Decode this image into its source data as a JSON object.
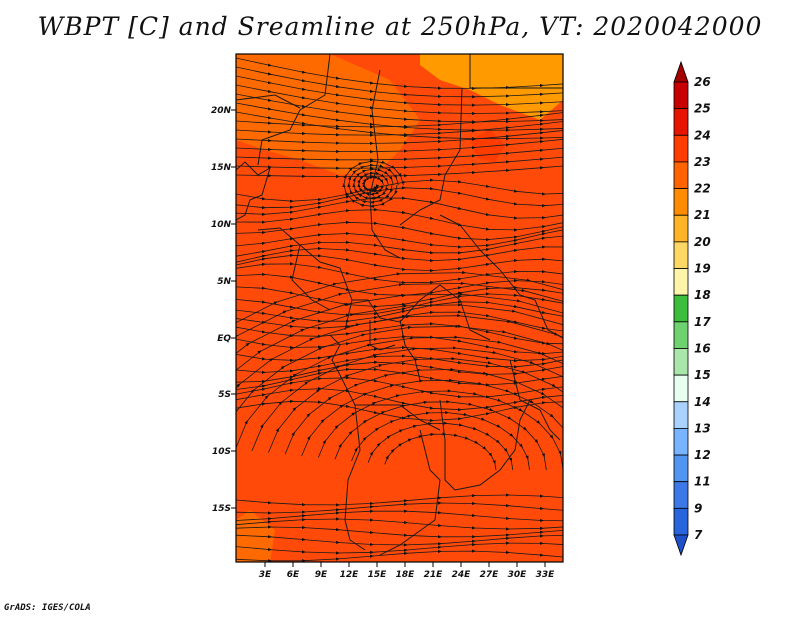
{
  "title": "WBPT [C] and Sreamline at 250hPa, VT: 2020042000",
  "credit": "GrADS: IGES/COLA",
  "map": {
    "lat_labels": [
      "20N",
      "15N",
      "10N",
      "5N",
      "EQ",
      "5S",
      "10S",
      "15S"
    ],
    "lon_labels": [
      "3E",
      "6E",
      "9E",
      "12E",
      "15E",
      "18E",
      "21E",
      "24E",
      "27E",
      "30E",
      "33E"
    ],
    "background_color": "#ff4a0a",
    "warm_patch_color": "#ff6a00",
    "cool_patch_color": "#ff9a00"
  },
  "colorbar": {
    "labels": [
      "26",
      "25",
      "24",
      "23",
      "22",
      "21",
      "20",
      "19",
      "18",
      "17",
      "16",
      "15",
      "14",
      "13",
      "12",
      "11",
      "9",
      "7"
    ],
    "colors": [
      "#a50000",
      "#c80000",
      "#e61400",
      "#ff3c00",
      "#ff6400",
      "#ff8c00",
      "#ffb428",
      "#ffd764",
      "#fff5aa",
      "#3cbe3c",
      "#6ed26e",
      "#aae6aa",
      "#e6fff0",
      "#aad2ff",
      "#78b4ff",
      "#5096f0",
      "#3c78e6",
      "#2864dc",
      "#1e50c8"
    ]
  }
}
